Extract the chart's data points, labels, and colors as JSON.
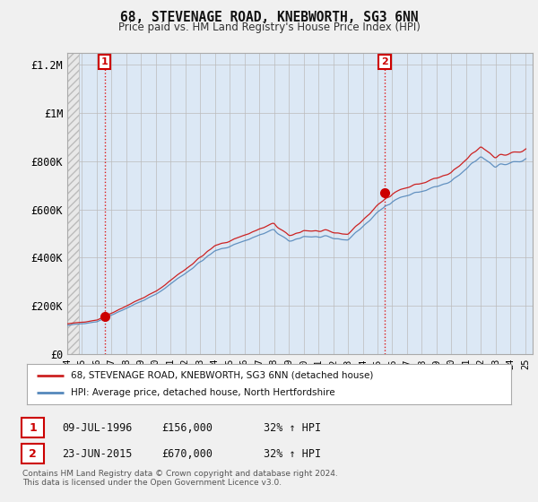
{
  "title": "68, STEVENAGE ROAD, KNEBWORTH, SG3 6NN",
  "subtitle": "Price paid vs. HM Land Registry's House Price Index (HPI)",
  "sale1_date": "09-JUL-1996",
  "sale1_price": 156000,
  "sale1_pct": "32% ↑ HPI",
  "sale2_date": "23-JUN-2015",
  "sale2_price": 670000,
  "sale2_pct": "32% ↑ HPI",
  "legend1": "68, STEVENAGE ROAD, KNEBWORTH, SG3 6NN (detached house)",
  "legend2": "HPI: Average price, detached house, North Hertfordshire",
  "footer": "Contains HM Land Registry data © Crown copyright and database right 2024.\nThis data is licensed under the Open Government Licence v3.0.",
  "sale1_color": "#cc0000",
  "sale2_color": "#cc0000",
  "hpi_color": "#5588bb",
  "price_color": "#cc2222",
  "vline_color": "#dd0000",
  "ylim": [
    0,
    1250000
  ],
  "yticks": [
    0,
    200000,
    400000,
    600000,
    800000,
    1000000,
    1200000
  ],
  "ytick_labels": [
    "£0",
    "£200K",
    "£400K",
    "£600K",
    "£800K",
    "£1M",
    "£1.2M"
  ],
  "background_color": "#f0f0f0",
  "plot_bg_color": "#dce8f5",
  "grid_color": "#bbbbbb",
  "hatch_color": "#cccccc"
}
